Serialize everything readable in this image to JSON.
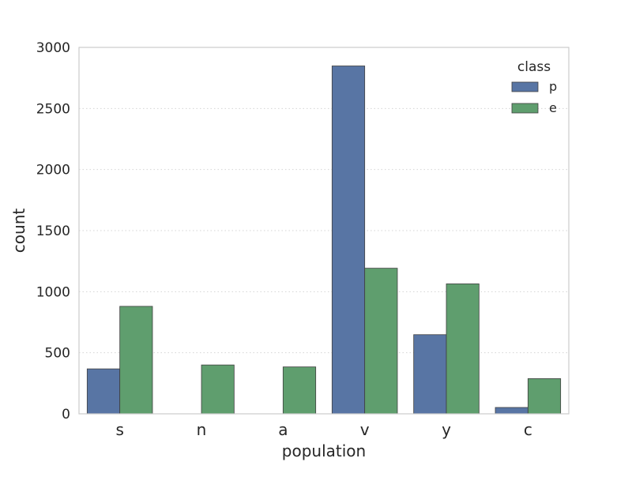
{
  "chart_data": {
    "type": "bar",
    "xlabel": "population",
    "ylabel": "count",
    "categories": [
      "s",
      "n",
      "a",
      "v",
      "y",
      "c"
    ],
    "series": [
      {
        "name": "p",
        "values": [
          368,
          0,
          0,
          2848,
          648,
          52
        ],
        "color": "#5875a4"
      },
      {
        "name": "e",
        "values": [
          880,
          400,
          384,
          1192,
          1064,
          288
        ],
        "color": "#5f9e6e"
      }
    ],
    "ylim": [
      0,
      3000
    ],
    "yticks": [
      0,
      500,
      1000,
      1500,
      2000,
      2500,
      3000
    ],
    "grid": "horizontal dotted",
    "legend": {
      "title": "class",
      "position": "top-right"
    }
  }
}
